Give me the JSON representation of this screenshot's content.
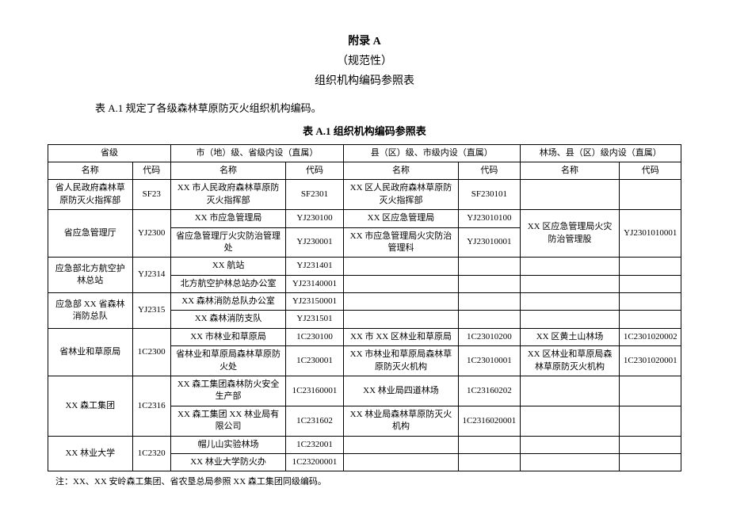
{
  "header": {
    "line1": "附录 A",
    "line2": "（规范性）",
    "line3": "组织机构编码参照表"
  },
  "intro": "表 A.1 规定了各级森林草原防灭火组织机构编码。",
  "caption": "表 A.1 组织机构编码参照表",
  "columns": {
    "group1": "省级",
    "group2": "市（地）级、省级内设（直属）",
    "group3": "县（区）级、市级内设（直属）",
    "group4": "林场、县（区）级内设（直属）",
    "name": "名称",
    "code": "代码"
  },
  "rows": [
    {
      "a1": "省人民政府森林草原防灭火指挥部",
      "a2": "SF23",
      "b1": "XX 市人民政府森林草原防灭火指挥部",
      "b2": "SF2301",
      "c1": "XX 区人民政府森林草原防灭火指挥部",
      "c2": "SF230101",
      "d1": "",
      "d2": ""
    },
    {
      "a1_span": true,
      "a_rows": 2,
      "a1": "省应急管理厅",
      "a2": "YJ2300",
      "b1": "XX 市应急管理局",
      "b2": "YJ230100",
      "c1": "XX 区应急管理局",
      "c2": "YJ23010100",
      "d1_span": true,
      "d_rows": 2,
      "d1": "XX 区应急管理局火灾防治管理股",
      "d2": "YJ2301010001"
    },
    {
      "a_skip": true,
      "b1": "省应急管理厅火灾防治管理处",
      "b2": "YJ230001",
      "c1": "XX 市应急管理局火灾防治管理科",
      "c2": "YJ23010001",
      "d_skip": true
    },
    {
      "a1_span": true,
      "a_rows": 2,
      "a1": "应急部北方航空护林总站",
      "a2": "YJ2314",
      "b1": "XX 航站",
      "b2": "YJ231401",
      "c1": "",
      "c2": "",
      "d1": "",
      "d2": ""
    },
    {
      "a_skip": true,
      "b1": "北方航空护林总站办公室",
      "b2": "YJ23140001",
      "c1": "",
      "c2": "",
      "d1": "",
      "d2": ""
    },
    {
      "a1_span": true,
      "a_rows": 2,
      "a1": "应急部 XX 省森林消防总队",
      "a2": "YJ2315",
      "b1": "XX 森林消防总队办公室",
      "b2": "YJ23150001",
      "c1": "",
      "c2": "",
      "d1": "",
      "d2": ""
    },
    {
      "a_skip": true,
      "b1": "XX 森林消防支队",
      "b2": "YJ231501",
      "c1": "",
      "c2": "",
      "d1": "",
      "d2": ""
    },
    {
      "a1_span": true,
      "a_rows": 2,
      "a1": "省林业和草原局",
      "a2": "1C2300",
      "b1": "XX 市林业和草原局",
      "b2": "1C230100",
      "c1": "XX 市 XX 区林业和草原局",
      "c2": "1C23010200",
      "d1": "XX 区黄土山林场",
      "d2": "1C2301020002"
    },
    {
      "a_skip": true,
      "b1": "省林业和草原局森林草原防火处",
      "b2": "1C230001",
      "c1": "XX 市林业和草原局森林草原防灭火机构",
      "c2": "1C23010001",
      "d1": "XX 区林业和草原局森林草原防灭火机构",
      "d2": "1C2301020001"
    },
    {
      "a1_span": true,
      "a_rows": 2,
      "a1": "XX 森工集团",
      "a2": "1C2316",
      "b1": "XX 森工集团森林防火安全生产部",
      "b2": "1C23160001",
      "c1": "XX 林业局四道林场",
      "c2": "1C23160202",
      "d1": "",
      "d2": ""
    },
    {
      "a_skip": true,
      "b1": "XX 森工集团 XX 林业局有限公司",
      "b2": "1C231602",
      "c1": "XX 林业局森林草原防灭火机构",
      "c2": "1C2316020001",
      "d1": "",
      "d2": ""
    },
    {
      "a1_span": true,
      "a_rows": 2,
      "a1": "XX 林业大学",
      "a2": "1C2320",
      "b1": "帽儿山实验林场",
      "b2": "1C232001",
      "c1": "",
      "c2": "",
      "d1": "",
      "d2": ""
    },
    {
      "a_skip": true,
      "b1": "XX 林业大学防火办",
      "b2": "1C23200001",
      "c1": "",
      "c2": "",
      "d1": "",
      "d2": ""
    }
  ],
  "footnote": "注：XX、XX 安岭森工集团、省农垦总局参照 XX 森工集团同级编码。"
}
